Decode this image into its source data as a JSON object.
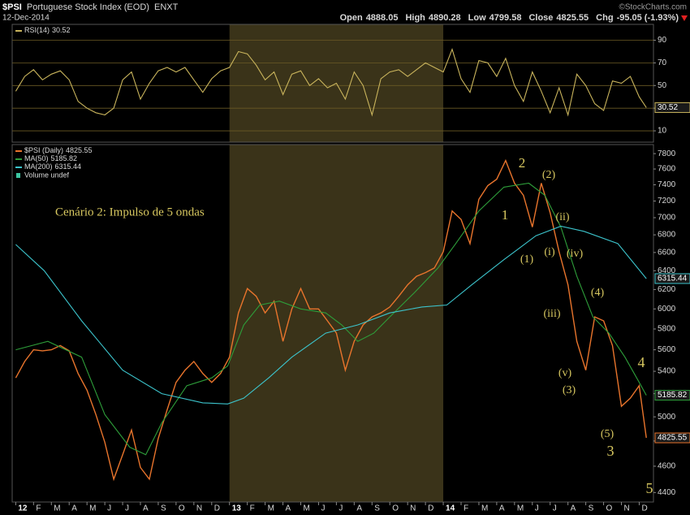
{
  "header": {
    "symbol": "$PSI",
    "name": "Portuguese Stock Index (EOD)",
    "exchange": "ENXT",
    "date": "12-Dec-2014",
    "credit": "©StockCharts.com",
    "quote": [
      {
        "label": "Open",
        "value": 4888.05
      },
      {
        "label": "High",
        "value": 4890.28
      },
      {
        "label": "Low",
        "value": 4799.58
      },
      {
        "label": "Close",
        "value": 4825.55
      },
      {
        "label": "Chg",
        "value": "-95.05 (-1.93%)"
      }
    ]
  },
  "chart_data": [
    {
      "type": "line",
      "xlim": [
        -0.2,
        35.8
      ],
      "ylim": [
        0,
        104
      ],
      "yticks": [
        10,
        30,
        50,
        70,
        90
      ],
      "grid": true,
      "highlight_x": [
        12,
        24
      ],
      "series": [
        {
          "name": "RSI(14)",
          "color": "#c9b45c",
          "x": [
            0,
            0.5,
            1,
            1.5,
            2,
            2.5,
            3,
            3.5,
            4,
            4.5,
            5,
            5.5,
            6,
            6.5,
            7,
            7.5,
            8,
            8.5,
            9,
            9.5,
            10,
            10.5,
            11,
            11.5,
            12,
            12.5,
            13,
            13.5,
            14,
            14.5,
            15,
            15.5,
            16,
            16.5,
            17,
            17.5,
            18,
            18.5,
            19,
            19.5,
            20,
            20.5,
            21,
            21.5,
            22,
            22.5,
            23,
            23.5,
            24,
            24.5,
            25,
            25.5,
            26,
            26.5,
            27,
            27.5,
            28,
            28.5,
            29,
            29.5,
            30,
            30.5,
            31,
            31.5,
            32,
            32.5,
            33,
            33.5,
            34,
            34.5,
            35,
            35.4
          ],
          "values": [
            45,
            58,
            64,
            55,
            60,
            63,
            55,
            36,
            30,
            26,
            24,
            30,
            55,
            62,
            38,
            52,
            63,
            66,
            62,
            66,
            55,
            44,
            56,
            63,
            66,
            80,
            78,
            68,
            55,
            62,
            42,
            60,
            63,
            50,
            56,
            48,
            52,
            38,
            62,
            50,
            24,
            56,
            62,
            64,
            58,
            64,
            70,
            66,
            62,
            82,
            56,
            44,
            72,
            70,
            58,
            74,
            50,
            36,
            62,
            45,
            26,
            48,
            24,
            60,
            50,
            34,
            28,
            54,
            52,
            58,
            40,
            30.52
          ]
        }
      ]
    },
    {
      "type": "line",
      "ylog": true,
      "xlim": [
        -0.2,
        35.8
      ],
      "ylim": [
        4330,
        7920
      ],
      "yticks": [
        4400,
        4600,
        4800,
        5000,
        5200,
        5400,
        5600,
        5800,
        6000,
        6200,
        6400,
        6600,
        6800,
        7000,
        7200,
        7400,
        7600,
        7800
      ],
      "grid": false,
      "highlight_x": [
        12,
        24
      ],
      "xticks": [
        {
          "value": 0,
          "label": "12"
        },
        {
          "value": 1,
          "label": "F"
        },
        {
          "value": 2,
          "label": "M"
        },
        {
          "value": 3,
          "label": "A"
        },
        {
          "value": 4,
          "label": "M"
        },
        {
          "value": 5,
          "label": "J"
        },
        {
          "value": 6,
          "label": "J"
        },
        {
          "value": 7,
          "label": "A"
        },
        {
          "value": 8,
          "label": "S"
        },
        {
          "value": 9,
          "label": "O"
        },
        {
          "value": 10,
          "label": "N"
        },
        {
          "value": 11,
          "label": "D"
        },
        {
          "value": 12,
          "label": "13"
        },
        {
          "value": 13,
          "label": "F"
        },
        {
          "value": 14,
          "label": "M"
        },
        {
          "value": 15,
          "label": "A"
        },
        {
          "value": 16,
          "label": "M"
        },
        {
          "value": 17,
          "label": "J"
        },
        {
          "value": 18,
          "label": "J"
        },
        {
          "value": 19,
          "label": "A"
        },
        {
          "value": 20,
          "label": "S"
        },
        {
          "value": 21,
          "label": "O"
        },
        {
          "value": 22,
          "label": "N"
        },
        {
          "value": 23,
          "label": "D"
        },
        {
          "value": 24,
          "label": "14"
        },
        {
          "value": 25,
          "label": "F"
        },
        {
          "value": 26,
          "label": "M"
        },
        {
          "value": 27,
          "label": "A"
        },
        {
          "value": 28,
          "label": "M"
        },
        {
          "value": 29,
          "label": "J"
        },
        {
          "value": 30,
          "label": "J"
        },
        {
          "value": 31,
          "label": "A"
        },
        {
          "value": 32,
          "label": "S"
        },
        {
          "value": 33,
          "label": "O"
        },
        {
          "value": 34,
          "label": "N"
        },
        {
          "value": 35,
          "label": "D"
        }
      ],
      "series": [
        {
          "name": "$PSI (Daily)",
          "color": "#e8742c",
          "x": [
            0,
            0.5,
            1,
            1.5,
            2,
            2.5,
            3,
            3.5,
            4,
            4.5,
            5,
            5.5,
            6,
            6.5,
            7,
            7.5,
            8,
            8.5,
            9,
            9.5,
            10,
            10.5,
            11,
            11.5,
            12,
            12.5,
            13,
            13.5,
            14,
            14.5,
            15,
            15.5,
            16,
            16.5,
            17,
            17.5,
            18,
            18.5,
            19,
            19.5,
            20,
            20.5,
            21,
            21.5,
            22,
            22.5,
            23,
            23.5,
            24,
            24.5,
            25,
            25.5,
            26,
            26.5,
            27,
            27.5,
            28,
            28.5,
            29,
            29.5,
            30,
            30.5,
            31,
            31.5,
            32,
            32.5,
            33,
            33.5,
            34,
            34.5,
            35,
            35.4
          ],
          "values": [
            5340,
            5490,
            5600,
            5590,
            5600,
            5640,
            5590,
            5380,
            5230,
            5020,
            4790,
            4500,
            4690,
            4890,
            4590,
            4500,
            4820,
            5060,
            5300,
            5410,
            5490,
            5380,
            5300,
            5380,
            5530,
            5960,
            6210,
            6130,
            5960,
            6080,
            5680,
            6000,
            6210,
            6000,
            6000,
            5880,
            5760,
            5410,
            5680,
            5840,
            5920,
            5960,
            6020,
            6130,
            6250,
            6340,
            6380,
            6430,
            6610,
            7080,
            6980,
            6700,
            7220,
            7390,
            7470,
            7710,
            7420,
            7270,
            6890,
            7420,
            7060,
            6610,
            6250,
            5680,
            5410,
            5920,
            5880,
            5640,
            5090,
            5160,
            5270,
            4825.55
          ]
        },
        {
          "name": "MA(50)",
          "color": "#2e9e3a",
          "x": [
            0,
            1.8,
            3.7,
            5.0,
            6.4,
            7.3,
            8.2,
            9.6,
            11.0,
            11.9,
            12.8,
            13.7,
            14.8,
            16.0,
            17.4,
            18.3,
            19.2,
            20.1,
            21.0,
            22.4,
            23.7,
            24.7,
            26.0,
            27.4,
            28.8,
            29.7,
            30.6,
            31.5,
            32.4,
            33.3,
            34.2,
            35.0,
            35.4
          ],
          "values": [
            5600,
            5680,
            5530,
            5020,
            4750,
            4690,
            4950,
            5270,
            5340,
            5450,
            5840,
            6040,
            6080,
            6000,
            5960,
            5840,
            5680,
            5760,
            5920,
            6170,
            6430,
            6700,
            7080,
            7370,
            7420,
            7270,
            6890,
            6340,
            5920,
            5760,
            5530,
            5300,
            5185.82
          ]
        },
        {
          "name": "MA(200)",
          "color": "#3cc4cc",
          "x": [
            0,
            1.6,
            3.7,
            6.0,
            8.2,
            10.5,
            11.9,
            12.8,
            14.2,
            15.5,
            17.4,
            19.2,
            21.0,
            22.8,
            24.2,
            25.6,
            27.4,
            29.2,
            30.6,
            31.9,
            33.8,
            35.4
          ],
          "values": [
            6690,
            6400,
            5880,
            5410,
            5200,
            5120,
            5110,
            5160,
            5340,
            5530,
            5760,
            5840,
            5960,
            6020,
            6040,
            6250,
            6520,
            6790,
            6900,
            6840,
            6700,
            6315.44
          ]
        }
      ],
      "volume_label": "Volume undef",
      "annotations": [
        "Cenário 2: Impulso de 5 ondas",
        "1",
        "2",
        "(2)",
        "(1)",
        "(ii)",
        "(i)",
        "(iv)",
        "(iii)",
        "(4)",
        "(v)",
        "(3)",
        "4",
        "(5)",
        "3",
        "5"
      ],
      "annotation_color": "#d8c860"
    }
  ]
}
